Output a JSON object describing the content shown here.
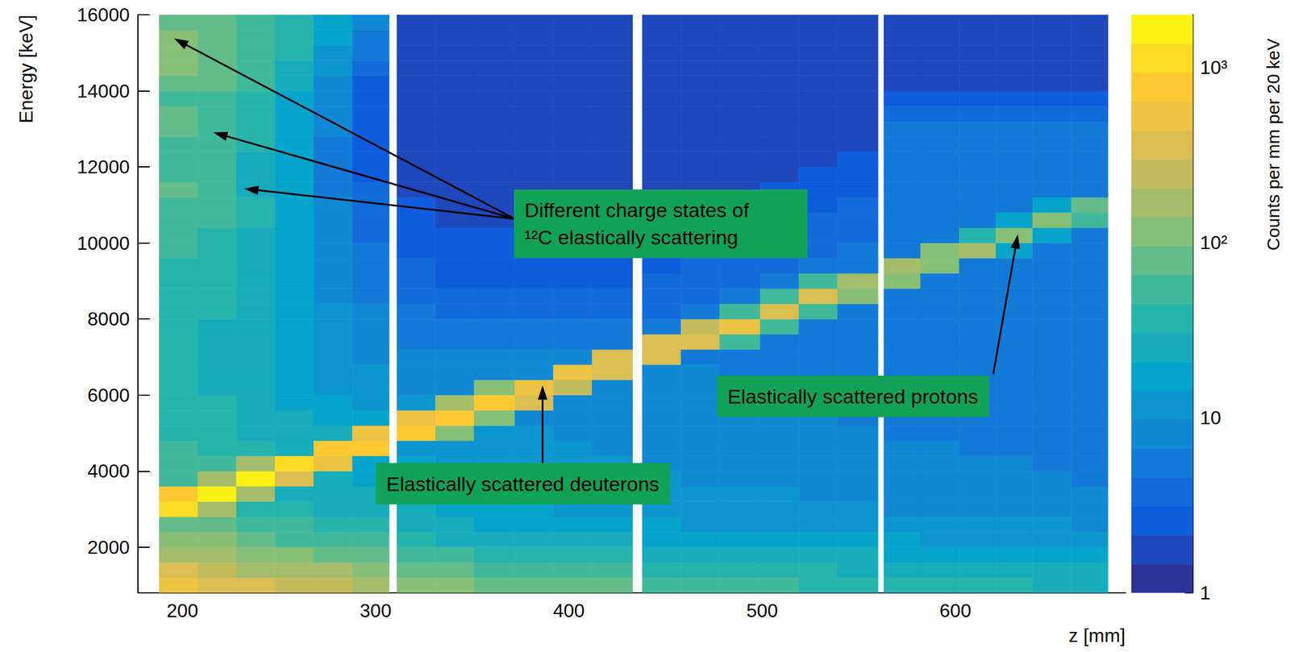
{
  "chart_data": {
    "type": "heatmap",
    "x_label": "z [mm]",
    "y_label": "Energy [keV]",
    "xlim": [
      177,
      688
    ],
    "xticks": [
      200,
      300,
      400,
      500,
      600
    ],
    "ylim": [
      800,
      16000
    ],
    "yticks": [
      2000,
      4000,
      6000,
      8000,
      10000,
      12000,
      14000,
      16000
    ],
    "grid": false,
    "x_bins": [
      188,
      208,
      228,
      248,
      268,
      288,
      307,
      311,
      331,
      351,
      372,
      392,
      412,
      433,
      438,
      458,
      478,
      499,
      519,
      539,
      560,
      563,
      582,
      602,
      621,
      640,
      660,
      679
    ],
    "y_bins": [
      800,
      1200,
      1600,
      2000,
      2400,
      2800,
      3200,
      3600,
      4000,
      4400,
      4800,
      5200,
      5600,
      6000,
      6400,
      6800,
      7200,
      7600,
      8000,
      8400,
      8800,
      9200,
      9600,
      10000,
      10400,
      10800,
      11200,
      11600,
      12000,
      12400,
      12800,
      13200,
      13600,
      14000,
      14400,
      14800,
      15200,
      15600,
      16000
    ],
    "counts": [
      [
        500,
        300,
        180,
        120,
        90,
        1200,
        700,
        60,
        50,
        45,
        42,
        40,
        38,
        36,
        35,
        34,
        34,
        35,
        36,
        38,
        40,
        42,
        45,
        50,
        55,
        60,
        70,
        60,
        55,
        65,
        80,
        70,
        65,
        90,
        110,
        120,
        100,
        90
      ],
      [
        400,
        250,
        150,
        100,
        70,
        150,
        1500,
        200,
        45,
        40,
        36,
        34,
        32,
        30,
        30,
        30,
        30,
        30,
        31,
        32,
        34,
        36,
        38,
        40,
        45,
        50,
        55,
        50,
        48,
        55,
        65,
        60,
        55,
        75,
        90,
        95,
        85,
        80
      ],
      [
        330,
        200,
        120,
        80,
        55,
        40,
        200,
        1400,
        200,
        35,
        30,
        28,
        26,
        25,
        24,
        24,
        24,
        24,
        24,
        25,
        26,
        27,
        28,
        30,
        32,
        35,
        30,
        28,
        30,
        35,
        40,
        38,
        36,
        45,
        55,
        60,
        55,
        55
      ],
      [
        270,
        170,
        100,
        65,
        45,
        35,
        30,
        400,
        1100,
        30,
        25,
        22,
        20,
        19,
        18,
        18,
        17,
        17,
        17,
        17,
        17,
        17,
        17,
        17,
        18,
        18,
        16,
        15,
        16,
        18,
        20,
        18,
        18,
        22,
        28,
        32,
        35,
        35
      ],
      [
        220,
        140,
        85,
        55,
        38,
        30,
        26,
        24,
        450,
        900,
        22,
        18,
        16,
        14,
        13,
        12,
        11,
        10,
        10,
        9,
        9,
        8,
        8,
        7,
        7,
        7,
        6,
        6,
        6,
        6,
        7,
        7,
        7,
        8,
        10,
        12,
        15,
        18
      ],
      [
        180,
        120,
        70,
        45,
        32,
        26,
        22,
        20,
        19,
        800,
        500,
        15,
        13,
        11,
        10,
        9,
        8,
        7,
        7,
        6,
        6,
        5,
        5,
        4,
        4,
        4,
        4,
        3,
        3,
        3,
        3,
        3,
        3,
        3,
        4,
        5,
        6,
        7
      ],
      null,
      [
        130,
        90,
        55,
        36,
        26,
        21,
        18,
        16,
        15,
        14,
        700,
        500,
        11,
        9,
        8,
        7,
        6,
        5,
        5,
        4,
        4,
        4,
        3,
        3,
        3,
        3,
        2,
        2,
        2,
        2,
        2,
        2,
        2,
        2,
        2,
        2,
        2,
        2
      ],
      [
        110,
        75,
        45,
        30,
        22,
        18,
        16,
        14,
        13,
        12,
        100,
        900,
        150,
        9,
        8,
        7,
        6,
        5,
        4,
        4,
        3,
        3,
        3,
        3,
        2,
        2,
        2,
        2,
        2,
        2,
        2,
        2,
        2,
        2,
        2,
        2,
        2,
        2
      ],
      [
        95,
        65,
        40,
        27,
        20,
        16,
        14,
        13,
        12,
        11,
        10,
        100,
        800,
        120,
        8,
        7,
        6,
        5,
        4,
        4,
        3,
        3,
        3,
        3,
        2,
        2,
        2,
        2,
        2,
        2,
        2,
        2,
        2,
        2,
        2,
        2,
        2,
        2
      ],
      [
        85,
        58,
        36,
        24,
        18,
        15,
        13,
        12,
        11,
        10,
        10,
        9,
        300,
        600,
        8,
        7,
        6,
        5,
        4,
        4,
        3,
        3,
        3,
        3,
        2,
        2,
        2,
        2,
        2,
        2,
        2,
        2,
        2,
        2,
        2,
        2,
        2,
        2
      ],
      [
        75,
        52,
        33,
        22,
        17,
        14,
        12,
        11,
        10,
        10,
        9,
        9,
        8,
        250,
        500,
        7,
        6,
        5,
        4,
        4,
        3,
        3,
        3,
        3,
        2,
        2,
        2,
        2,
        2,
        2,
        2,
        2,
        2,
        2,
        2,
        2,
        2,
        2
      ],
      [
        68,
        48,
        31,
        21,
        16,
        13,
        11,
        10,
        10,
        9,
        9,
        8,
        8,
        8,
        300,
        400,
        6,
        5,
        4,
        4,
        3,
        3,
        3,
        3,
        2,
        2,
        2,
        2,
        2,
        2,
        2,
        2,
        2,
        2,
        2,
        2,
        2,
        2
      ],
      null,
      [
        60,
        44,
        29,
        20,
        15,
        12,
        11,
        10,
        9,
        9,
        8,
        8,
        8,
        7,
        7,
        300,
        350,
        5,
        4,
        4,
        4,
        3,
        3,
        3,
        3,
        2,
        2,
        2,
        2,
        2,
        2,
        2,
        2,
        2,
        2,
        2,
        2,
        2
      ],
      [
        55,
        40,
        27,
        19,
        14,
        12,
        10,
        9,
        9,
        8,
        8,
        8,
        7,
        7,
        7,
        6,
        350,
        250,
        5,
        4,
        4,
        4,
        3,
        3,
        3,
        2,
        2,
        2,
        2,
        2,
        2,
        2,
        2,
        2,
        2,
        2,
        2,
        2
      ],
      [
        50,
        37,
        25,
        18,
        14,
        11,
        10,
        9,
        8,
        8,
        8,
        7,
        7,
        7,
        6,
        6,
        50,
        450,
        60,
        5,
        4,
        4,
        4,
        3,
        3,
        3,
        2,
        2,
        2,
        2,
        2,
        2,
        2,
        2,
        2,
        2,
        2,
        2
      ],
      [
        46,
        34,
        24,
        17,
        13,
        11,
        10,
        9,
        8,
        8,
        7,
        7,
        7,
        6,
        6,
        6,
        6,
        50,
        350,
        60,
        5,
        4,
        4,
        4,
        3,
        3,
        3,
        2,
        2,
        2,
        2,
        2,
        2,
        2,
        2,
        2,
        2,
        2
      ],
      [
        43,
        32,
        23,
        16,
        12,
        10,
        9,
        8,
        8,
        7,
        7,
        7,
        6,
        6,
        6,
        6,
        5,
        5,
        50,
        300,
        50,
        5,
        4,
        4,
        4,
        3,
        3,
        3,
        2,
        2,
        2,
        2,
        2,
        2,
        2,
        2,
        2,
        2
      ],
      [
        40,
        30,
        22,
        16,
        12,
        10,
        9,
        8,
        8,
        7,
        7,
        6,
        6,
        6,
        6,
        5,
        5,
        5,
        5,
        130,
        200,
        5,
        5,
        4,
        4,
        4,
        3,
        3,
        3,
        2,
        2,
        2,
        2,
        2,
        2,
        2,
        2,
        2
      ],
      null,
      [
        38,
        28,
        20,
        15,
        11,
        9,
        8,
        8,
        7,
        7,
        6,
        6,
        6,
        6,
        6,
        5,
        5,
        5,
        5,
        5,
        120,
        150,
        6,
        6,
        6,
        6,
        5,
        5,
        5,
        5,
        5,
        4,
        3,
        2,
        2,
        2,
        2,
        2
      ],
      [
        36,
        27,
        19,
        14,
        11,
        9,
        8,
        7,
        7,
        7,
        6,
        6,
        6,
        6,
        5,
        5,
        5,
        5,
        5,
        5,
        6,
        120,
        100,
        6,
        6,
        6,
        5,
        5,
        5,
        5,
        5,
        4,
        3,
        2,
        2,
        2,
        2,
        2
      ],
      [
        34,
        26,
        18,
        14,
        11,
        9,
        8,
        7,
        7,
        6,
        6,
        6,
        6,
        5,
        5,
        5,
        5,
        5,
        5,
        5,
        5,
        6,
        150,
        40,
        6,
        6,
        5,
        5,
        5,
        5,
        5,
        4,
        3,
        2,
        2,
        2,
        2,
        2
      ],
      [
        32,
        25,
        18,
        13,
        10,
        9,
        8,
        7,
        7,
        6,
        6,
        6,
        5,
        5,
        5,
        5,
        5,
        5,
        5,
        5,
        5,
        5,
        20,
        130,
        20,
        6,
        6,
        5,
        5,
        5,
        5,
        4,
        3,
        2,
        2,
        2,
        2,
        2
      ],
      [
        30,
        24,
        17,
        13,
        10,
        8,
        7,
        7,
        6,
        6,
        6,
        5,
        5,
        5,
        5,
        5,
        5,
        5,
        5,
        5,
        5,
        5,
        5,
        20,
        110,
        15,
        6,
        5,
        5,
        5,
        5,
        4,
        3,
        2,
        2,
        2,
        2,
        2
      ],
      [
        28,
        23,
        16,
        12,
        9,
        8,
        7,
        6,
        6,
        6,
        5,
        5,
        5,
        5,
        5,
        5,
        5,
        5,
        5,
        5,
        5,
        5,
        5,
        5,
        60,
        80,
        6,
        5,
        5,
        5,
        5,
        4,
        3,
        2,
        2,
        2,
        2,
        2
      ]
    ],
    "colorbar": {
      "label": "Counts per mm per 20 keV",
      "range": [
        1,
        2000
      ],
      "ticks": [
        1,
        10,
        {
          "value": 100,
          "label": "10²"
        },
        {
          "value": 1000,
          "label": "10³"
        }
      ],
      "log": true
    },
    "annotations": [
      {
        "text": "Different charge states of ¹²C elastically scattering",
        "at": [
          371.5,
          11405
        ],
        "arrows": [
          {
            "from": [
              372,
              10633
            ],
            "to": [
              195.7,
              15377
            ]
          },
          {
            "from": [
              372,
              10633
            ],
            "to": [
              216,
              12908
            ]
          },
          {
            "from": [
              372,
              10633
            ],
            "to": [
              232,
              11427
            ]
          }
        ]
      },
      {
        "text": "Elastically scattered deuterons",
        "at": [
          300,
          4213
        ],
        "arrows": [
          {
            "from": [
              386.4,
              4213
            ],
            "to": [
              386.4,
              6253
            ]
          }
        ]
      },
      {
        "text": "Elastically scattered protons",
        "at": [
          476.6,
          6510
        ],
        "arrows": [
          {
            "from": [
              619.6,
              6553
            ],
            "to": [
              632.3,
              10224
            ]
          }
        ]
      }
    ]
  }
}
